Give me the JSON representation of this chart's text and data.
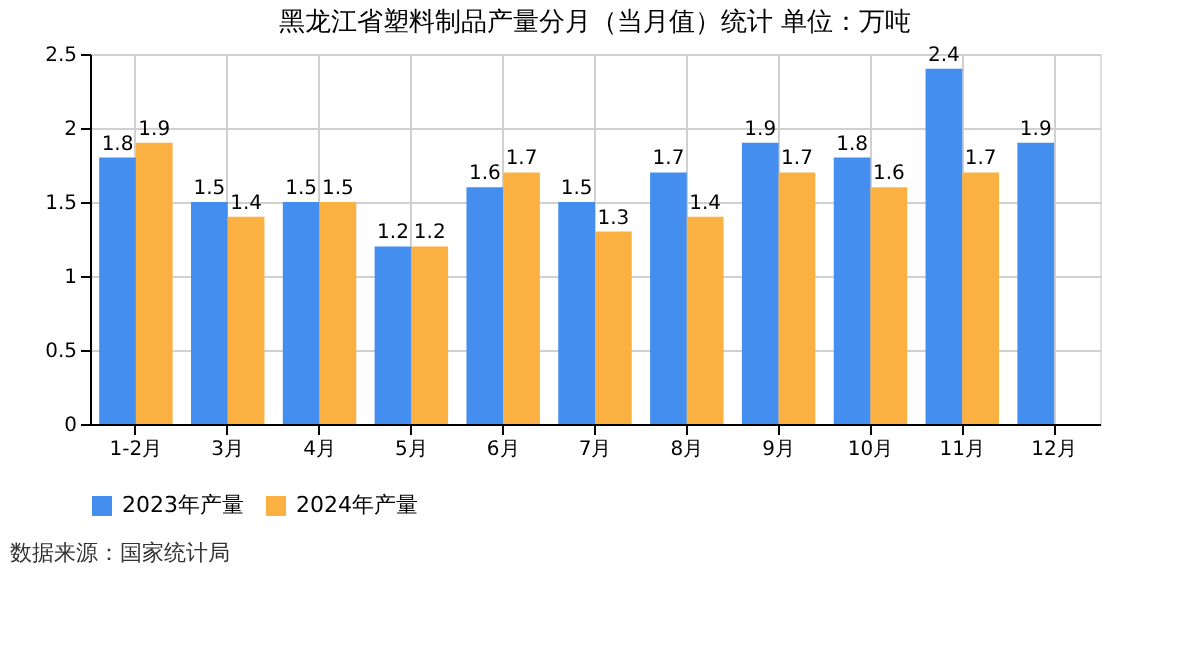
{
  "chart_data": {
    "type": "bar",
    "title": "黑龙江省塑料制品产量分月（当月值）统计  单位：万吨",
    "categories": [
      "1-2月",
      "3月",
      "4月",
      "5月",
      "6月",
      "7月",
      "8月",
      "9月",
      "10月",
      "11月",
      "12月"
    ],
    "series": [
      {
        "name": "2023年产量",
        "color": "#448ef0",
        "values": [
          1.8,
          1.5,
          1.5,
          1.2,
          1.6,
          1.5,
          1.7,
          1.9,
          1.8,
          2.4,
          1.9
        ]
      },
      {
        "name": "2024年产量",
        "color": "#fbb142",
        "values": [
          1.9,
          1.4,
          1.5,
          1.2,
          1.7,
          1.3,
          1.4,
          1.7,
          1.6,
          1.7,
          null
        ]
      }
    ],
    "ylim": [
      0,
      2.5
    ],
    "yticks": [
      0,
      0.5,
      1,
      1.5,
      2,
      2.5
    ],
    "grid": true,
    "legend": "bottom",
    "data_labels": true,
    "annotations": [
      "数据来源：国家统计局"
    ]
  }
}
